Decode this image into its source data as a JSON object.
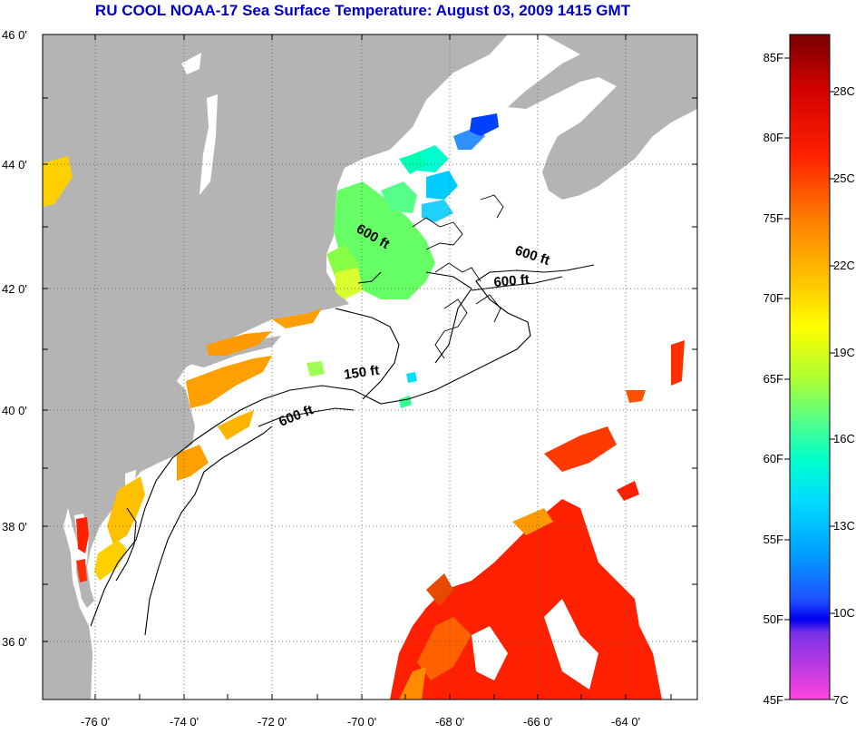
{
  "title": "RU COOL  NOAA-17  Sea Surface Temperature:  August 03, 2009 1415 GMT",
  "lat_labels": [
    "46 0'",
    "44 0'",
    "42 0'",
    "40 0'",
    "38 0'",
    "36 0'"
  ],
  "lon_labels": [
    "-76 0'",
    "-74 0'",
    "-72 0'",
    "-70 0'",
    "-68 0'",
    "-66 0'",
    "-64 0'"
  ],
  "contour_labels": [
    "600 ft",
    "600 ft",
    "600 ft",
    "150 ft",
    "600 ft"
  ],
  "colorbar": {
    "fahrenheit": [
      "85F",
      "80F",
      "75F",
      "70F",
      "65F",
      "60F",
      "55F",
      "50F",
      "45F"
    ],
    "celsius": [
      "28C",
      "25C",
      "22C",
      "19C",
      "16C",
      "13C",
      "10C",
      "7C"
    ]
  },
  "colors": {
    "land": "#b4b4b4",
    "title": "#0000cc"
  }
}
